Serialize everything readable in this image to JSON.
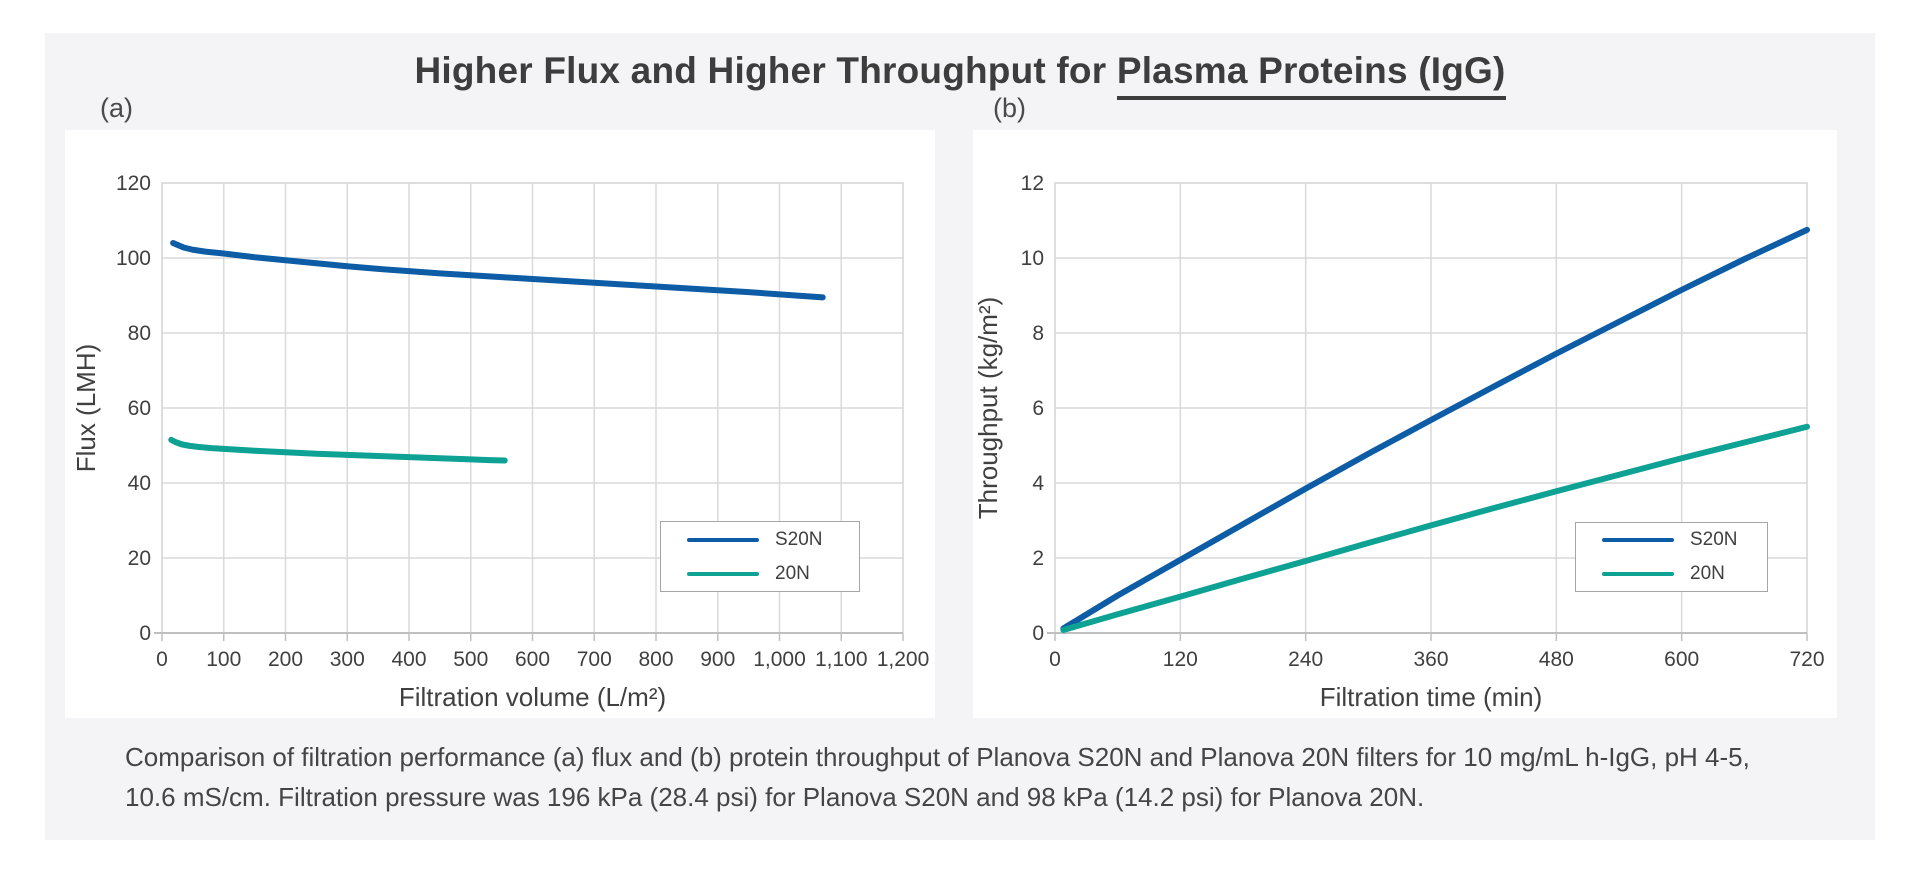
{
  "title": {
    "plain": "Higher Flux and Higher Throughput for ",
    "underlined": "Plasma Proteins (IgG)"
  },
  "panel_labels": {
    "a": "(a)",
    "b": "(b)"
  },
  "caption": {
    "lines": [
      "Comparison of filtration performance (a) flux and (b) protein throughput of Planova S20N and Planova 20N filters for 10 mg/mL h-IgG, pH 4-5,",
      "10.6 mS/cm. Filtration pressure was 196 kPa (28.4 psi) for Planova S20N and 98 kPa (14.2 psi) for Planova 20N."
    ]
  },
  "colors": {
    "s20n_blue": "#0D5CA6",
    "n20_teal": "#0DA294",
    "grid": "#d9d9d9",
    "axis": "#bfbfbf",
    "text": "#404040"
  },
  "chart_data": [
    {
      "id": "flux",
      "type": "line",
      "title": "",
      "xlabel": "Filtration volume (L/m²)",
      "ylabel": "Flux (LMH)",
      "xlim": [
        0,
        1200
      ],
      "ylim": [
        0,
        120
      ],
      "grid": true,
      "legend_position": "lower right",
      "xticks": {
        "values": [
          0,
          100,
          200,
          300,
          400,
          500,
          600,
          700,
          800,
          900,
          1000,
          1100,
          1200
        ],
        "labels": [
          "0",
          "100",
          "200",
          "300",
          "400",
          "500",
          "600",
          "700",
          "800",
          "900",
          "1,000",
          "1,100",
          "1,200"
        ]
      },
      "yticks": {
        "values": [
          0,
          20,
          40,
          60,
          80,
          100,
          120
        ],
        "labels": [
          "0",
          "20",
          "40",
          "60",
          "80",
          "100",
          "120"
        ]
      },
      "series": [
        {
          "name": "S20N",
          "color": "#0D5CA6",
          "points": [
            [
              18,
              104
            ],
            [
              25,
              103.5
            ],
            [
              35,
              102.8
            ],
            [
              50,
              102.2
            ],
            [
              70,
              101.7
            ],
            [
              100,
              101.2
            ],
            [
              150,
              100.2
            ],
            [
              200,
              99.4
            ],
            [
              250,
              98.6
            ],
            [
              300,
              97.8
            ],
            [
              350,
              97.1
            ],
            [
              400,
              96.5
            ],
            [
              450,
              95.9
            ],
            [
              500,
              95.4
            ],
            [
              550,
              94.9
            ],
            [
              600,
              94.4
            ],
            [
              650,
              93.9
            ],
            [
              700,
              93.4
            ],
            [
              750,
              92.9
            ],
            [
              800,
              92.4
            ],
            [
              850,
              91.9
            ],
            [
              900,
              91.4
            ],
            [
              950,
              90.9
            ],
            [
              1000,
              90.3
            ],
            [
              1035,
              89.9
            ],
            [
              1070,
              89.5
            ]
          ]
        },
        {
          "name": "20N",
          "color": "#0DA294",
          "points": [
            [
              15,
              51.5
            ],
            [
              22,
              50.9
            ],
            [
              32,
              50.3
            ],
            [
              45,
              49.9
            ],
            [
              60,
              49.6
            ],
            [
              80,
              49.3
            ],
            [
              100,
              49.1
            ],
            [
              150,
              48.6
            ],
            [
              200,
              48.2
            ],
            [
              250,
              47.8
            ],
            [
              300,
              47.5
            ],
            [
              350,
              47.2
            ],
            [
              400,
              46.9
            ],
            [
              450,
              46.6
            ],
            [
              500,
              46.3
            ],
            [
              530,
              46.1
            ],
            [
              555,
              46.0
            ]
          ]
        }
      ]
    },
    {
      "id": "throughput",
      "type": "line",
      "title": "",
      "xlabel": "Filtration time (min)",
      "ylabel": "Throughput (kg/m²)",
      "xlim": [
        0,
        720
      ],
      "ylim": [
        0,
        12
      ],
      "grid": true,
      "legend_position": "lower right",
      "xticks": {
        "values": [
          0,
          120,
          240,
          360,
          480,
          600,
          720
        ],
        "labels": [
          "0",
          "120",
          "240",
          "360",
          "480",
          "600",
          "720"
        ]
      },
      "yticks": {
        "values": [
          0,
          2,
          4,
          6,
          8,
          10,
          12
        ],
        "labels": [
          "0",
          "2",
          "4",
          "6",
          "8",
          "10",
          "12"
        ]
      },
      "series": [
        {
          "name": "S20N",
          "color": "#0D5CA6",
          "points": [
            [
              8,
              0.12
            ],
            [
              60,
              1.0
            ],
            [
              120,
              1.95
            ],
            [
              180,
              2.9
            ],
            [
              240,
              3.85
            ],
            [
              300,
              4.78
            ],
            [
              360,
              5.68
            ],
            [
              420,
              6.57
            ],
            [
              480,
              7.45
            ],
            [
              540,
              8.3
            ],
            [
              600,
              9.15
            ],
            [
              660,
              9.97
            ],
            [
              720,
              10.75
            ]
          ]
        },
        {
          "name": "20N",
          "color": "#0DA294",
          "points": [
            [
              8,
              0.08
            ],
            [
              60,
              0.5
            ],
            [
              120,
              0.97
            ],
            [
              180,
              1.45
            ],
            [
              240,
              1.92
            ],
            [
              300,
              2.4
            ],
            [
              360,
              2.87
            ],
            [
              420,
              3.33
            ],
            [
              480,
              3.78
            ],
            [
              540,
              4.22
            ],
            [
              600,
              4.66
            ],
            [
              660,
              5.08
            ],
            [
              720,
              5.5
            ]
          ]
        }
      ]
    }
  ]
}
